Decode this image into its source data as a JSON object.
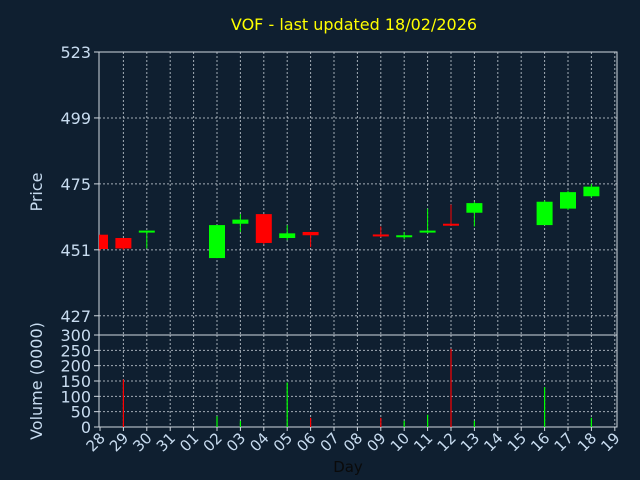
{
  "chart_data": [
    {
      "type": "candlestick",
      "title": "VOF - last updated 18/02/2026",
      "ylabel": "Price",
      "xlabel": "Day",
      "ylim": [
        420,
        523
      ],
      "y_ticks": [
        "523",
        "499",
        "475",
        "451",
        "427"
      ],
      "y_tick_values": [
        523,
        499,
        475,
        451,
        427
      ],
      "grid": true,
      "x_tick_labels": [
        "28",
        "29",
        "30",
        "31",
        "01",
        "02",
        "03",
        "04",
        "05",
        "06",
        "07",
        "08",
        "09",
        "10",
        "11",
        "12",
        "13",
        "14",
        "15",
        "16",
        "17",
        "18",
        "19"
      ],
      "colors": {
        "up": "#00ff00",
        "down": "#ff0000",
        "text_title": "#ffff00",
        "text_axis": "#c8dcf0"
      },
      "candles": [
        {
          "x": "28",
          "open": 456.5,
          "high": 456.5,
          "low": 450.8,
          "close": 451.3
        },
        {
          "x": "29",
          "open": 455.3,
          "high": 455.3,
          "low": 451.0,
          "close": 451.5
        },
        {
          "x": "30",
          "open": 457.5,
          "high": 458.0,
          "low": 451.5,
          "close": 458.0
        },
        {
          "x": "02",
          "open": 448.0,
          "high": 460.0,
          "low": 448.0,
          "close": 460.0
        },
        {
          "x": "03",
          "open": 460.5,
          "high": 464.0,
          "low": 457.5,
          "close": 462.0
        },
        {
          "x": "04",
          "open": 464.0,
          "high": 464.0,
          "low": 453.0,
          "close": 453.5
        },
        {
          "x": "05",
          "open": 455.3,
          "high": 460.0,
          "low": 454.5,
          "close": 457.0
        },
        {
          "x": "06",
          "open": 457.5,
          "high": 457.5,
          "low": 452.0,
          "close": 456.3
        },
        {
          "x": "09",
          "open": 456.6,
          "high": 459.5,
          "low": 455.6,
          "close": 456.4
        },
        {
          "x": "10",
          "open": 455.8,
          "high": 457.5,
          "low": 454.8,
          "close": 456.3
        },
        {
          "x": "11",
          "open": 457.5,
          "high": 466.0,
          "low": 457.0,
          "close": 458.0
        },
        {
          "x": "12",
          "open": 460.5,
          "high": 467.5,
          "low": 460.0,
          "close": 460.1
        },
        {
          "x": "13",
          "open": 464.5,
          "high": 468.5,
          "low": 459.5,
          "close": 468.0
        },
        {
          "x": "16",
          "open": 460.0,
          "high": 469.0,
          "low": 460.0,
          "close": 468.5
        },
        {
          "x": "17",
          "open": 466.0,
          "high": 472.5,
          "low": 465.5,
          "close": 472.0
        },
        {
          "x": "18",
          "open": 470.5,
          "high": 475.0,
          "low": 470.0,
          "close": 474.0
        }
      ]
    },
    {
      "type": "bar",
      "ylabel": "Volume (0000)",
      "ylim": [
        0,
        300
      ],
      "y_ticks": [
        "300",
        "250",
        "200",
        "150",
        "100",
        "50",
        "0"
      ],
      "y_tick_values": [
        300,
        250,
        200,
        150,
        100,
        50,
        0
      ],
      "grid": true,
      "categories": [
        "29",
        "02",
        "03",
        "05",
        "06",
        "09",
        "10",
        "11",
        "12",
        "13",
        "16",
        "18"
      ],
      "values": [
        155,
        35,
        20,
        145,
        30,
        30,
        20,
        40,
        255,
        20,
        130,
        30
      ],
      "colors": [
        "#ff0000",
        "#00ff00",
        "#00ff00",
        "#00ff00",
        "#ff0000",
        "#ff0000",
        "#00ff00",
        "#00ff00",
        "#ff0000",
        "#00ff00",
        "#00ff00",
        "#00ff00"
      ]
    }
  ]
}
